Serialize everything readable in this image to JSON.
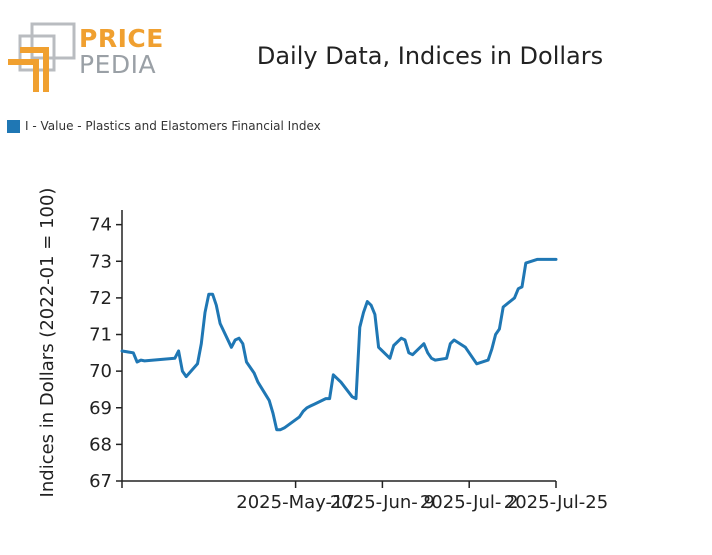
{
  "logo": {
    "line1": "PRICE",
    "line2": "PEDIA"
  },
  "colors": {
    "series": "#1f77b4",
    "logo_orange": "#f0a030",
    "logo_gray": "#9aa0a6"
  },
  "chart_data": {
    "type": "line",
    "title": "Daily Data, Indices in Dollars",
    "xlabel": "",
    "ylabel": "Indices in Dollars (2022-01 = 100)",
    "ylim": [
      67,
      74.4
    ],
    "y_ticks": [
      67,
      68,
      69,
      70,
      71,
      72,
      73,
      74
    ],
    "x_tick_labels": [
      "2025-May-17",
      "2025-Jun- 9",
      "2025-Jul- 2",
      "2025-Jul-25"
    ],
    "x_tick_days": [
      46,
      69,
      92,
      115
    ],
    "x_range_days": [
      0,
      115
    ],
    "legend": "top-left",
    "grid": false,
    "series": [
      {
        "name": "I - Value - Plastics and Elastomers Financial Index",
        "x": [
          "2025-Apr-01",
          "2025-Apr-04",
          "2025-Apr-05",
          "2025-Apr-06",
          "2025-Apr-07",
          "2025-Apr-15",
          "2025-Apr-16",
          "2025-Apr-17",
          "2025-Apr-18",
          "2025-Apr-21",
          "2025-Apr-22",
          "2025-Apr-23",
          "2025-Apr-24",
          "2025-Apr-25",
          "2025-Apr-26",
          "2025-Apr-27",
          "2025-Apr-30",
          "2025-May-01",
          "2025-May-02",
          "2025-May-03",
          "2025-May-04",
          "2025-May-05",
          "2025-May-06",
          "2025-May-07",
          "2025-May-10",
          "2025-May-11",
          "2025-May-12",
          "2025-May-13",
          "2025-May-14",
          "2025-May-18",
          "2025-May-19",
          "2025-May-20",
          "2025-May-21",
          "2025-May-22",
          "2025-May-25",
          "2025-May-26",
          "2025-May-27",
          "2025-May-29",
          "2025-Jun-01",
          "2025-Jun-02",
          "2025-Jun-03",
          "2025-Jun-04",
          "2025-Jun-05",
          "2025-Jun-06",
          "2025-Jun-07",
          "2025-Jun-08",
          "2025-Jun-11",
          "2025-Jun-12",
          "2025-Jun-14",
          "2025-Jun-15",
          "2025-Jun-16",
          "2025-Jun-17",
          "2025-Jun-20",
          "2025-Jun-21",
          "2025-Jun-22",
          "2025-Jun-23",
          "2025-Jun-26",
          "2025-Jun-27",
          "2025-Jun-28",
          "2025-Jul-01",
          "2025-Jul-04",
          "2025-Jul-07",
          "2025-Jul-08",
          "2025-Jul-09",
          "2025-Jul-10",
          "2025-Jul-11",
          "2025-Jul-14",
          "2025-Jul-15",
          "2025-Jul-16",
          "2025-Jul-17",
          "2025-Jul-20",
          "2025-Jul-21",
          "2025-Jul-22",
          "2025-Jul-23",
          "2025-Jul-24",
          "2025-Jul-25"
        ],
        "values": [
          70.55,
          70.5,
          70.25,
          70.3,
          70.28,
          70.35,
          70.55,
          70.0,
          69.85,
          70.2,
          70.75,
          71.6,
          72.1,
          72.1,
          71.8,
          71.3,
          70.65,
          70.85,
          70.9,
          70.75,
          70.25,
          70.1,
          69.95,
          69.7,
          69.2,
          68.85,
          68.4,
          68.4,
          68.45,
          68.75,
          68.9,
          69.0,
          69.05,
          69.1,
          69.25,
          69.25,
          69.9,
          69.7,
          69.3,
          69.25,
          71.2,
          71.6,
          71.9,
          71.8,
          71.55,
          70.65,
          70.35,
          70.7,
          70.9,
          70.85,
          70.5,
          70.45,
          70.75,
          70.5,
          70.35,
          70.3,
          70.35,
          70.75,
          70.85,
          70.65,
          70.2,
          70.3,
          70.6,
          71.0,
          71.15,
          71.75,
          72.0,
          72.25,
          72.3,
          72.95,
          73.05,
          73.05,
          73.05,
          73.05,
          73.05,
          73.05
        ]
      }
    ]
  }
}
